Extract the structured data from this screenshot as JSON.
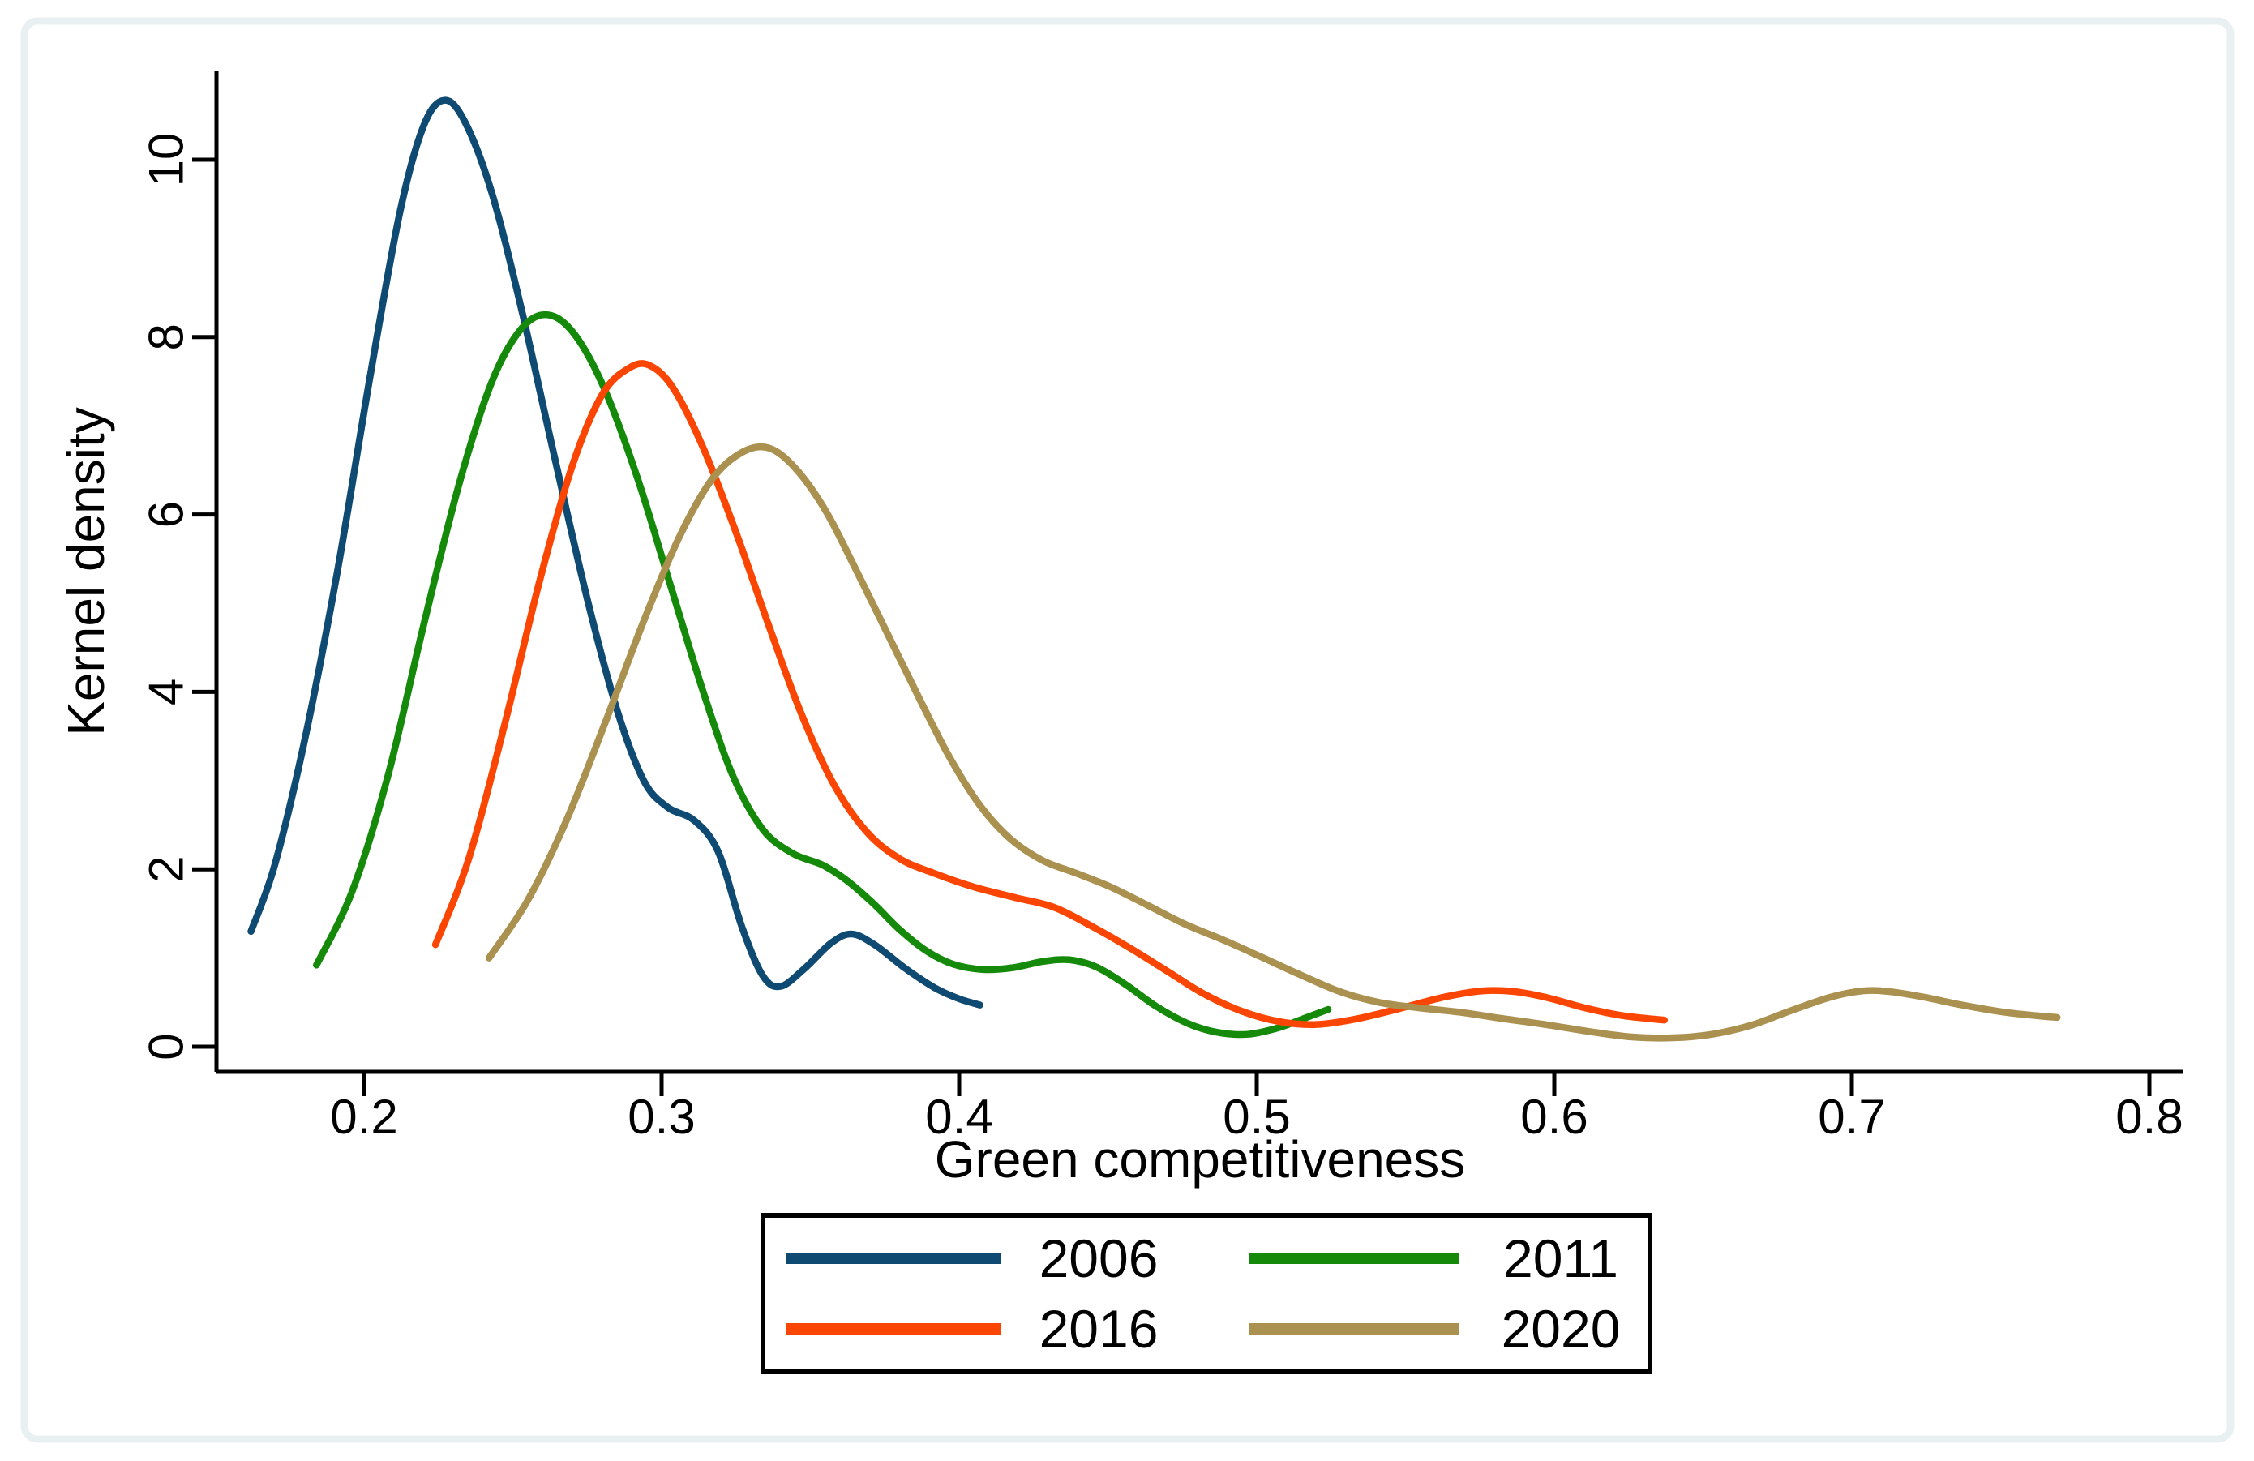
{
  "figure": {
    "background": "#ffffff",
    "frame_color": "#e8f0f1",
    "axis_color": "#000000"
  },
  "chart_data": {
    "type": "line",
    "subtype": "kernel-density",
    "title": "",
    "xlabel": "Green competitiveness",
    "ylabel": "Kernel density",
    "xlim": [
      0.15,
      0.811
    ],
    "ylim": [
      0,
      11
    ],
    "grid": false,
    "legend_position": "bottom-center",
    "xticks": [
      0.2,
      0.3,
      0.4,
      0.5,
      0.6,
      0.7,
      0.8
    ],
    "xtick_labels": [
      "0.2",
      "0.3",
      "0.4",
      "0.5",
      "0.6",
      "0.7",
      "0.8"
    ],
    "yticks": [
      0,
      2,
      4,
      6,
      8,
      10
    ],
    "ytick_labels": [
      "0",
      "2",
      "4",
      "6",
      "8",
      "10"
    ],
    "series": [
      {
        "name": "2006",
        "color": "#0e4a72",
        "peak": {
          "x": 0.227,
          "y": 10.67
        },
        "points": [
          [
            0.162,
            1.3
          ],
          [
            0.17,
            2.05
          ],
          [
            0.18,
            3.45
          ],
          [
            0.191,
            5.35
          ],
          [
            0.202,
            7.55
          ],
          [
            0.212,
            9.4
          ],
          [
            0.22,
            10.38
          ],
          [
            0.227,
            10.67
          ],
          [
            0.234,
            10.42
          ],
          [
            0.243,
            9.62
          ],
          [
            0.253,
            8.3
          ],
          [
            0.264,
            6.65
          ],
          [
            0.275,
            5.05
          ],
          [
            0.285,
            3.8
          ],
          [
            0.294,
            3.0
          ],
          [
            0.302,
            2.7
          ],
          [
            0.311,
            2.55
          ],
          [
            0.319,
            2.2
          ],
          [
            0.327,
            1.35
          ],
          [
            0.334,
            0.8
          ],
          [
            0.34,
            0.68
          ],
          [
            0.348,
            0.88
          ],
          [
            0.357,
            1.17
          ],
          [
            0.364,
            1.27
          ],
          [
            0.372,
            1.14
          ],
          [
            0.382,
            0.88
          ],
          [
            0.392,
            0.66
          ],
          [
            0.4,
            0.54
          ],
          [
            0.407,
            0.47
          ]
        ]
      },
      {
        "name": "2011",
        "color": "#158a0a",
        "peak": {
          "x": 0.262,
          "y": 8.25
        },
        "points": [
          [
            0.184,
            0.92
          ],
          [
            0.196,
            1.75
          ],
          [
            0.208,
            3.05
          ],
          [
            0.22,
            4.75
          ],
          [
            0.232,
            6.35
          ],
          [
            0.243,
            7.5
          ],
          [
            0.253,
            8.1
          ],
          [
            0.262,
            8.25
          ],
          [
            0.271,
            8.02
          ],
          [
            0.281,
            7.4
          ],
          [
            0.292,
            6.4
          ],
          [
            0.303,
            5.2
          ],
          [
            0.314,
            4.0
          ],
          [
            0.324,
            3.05
          ],
          [
            0.334,
            2.45
          ],
          [
            0.344,
            2.18
          ],
          [
            0.354,
            2.05
          ],
          [
            0.362,
            1.88
          ],
          [
            0.371,
            1.62
          ],
          [
            0.38,
            1.32
          ],
          [
            0.389,
            1.08
          ],
          [
            0.398,
            0.93
          ],
          [
            0.408,
            0.87
          ],
          [
            0.418,
            0.89
          ],
          [
            0.428,
            0.96
          ],
          [
            0.437,
            0.98
          ],
          [
            0.446,
            0.9
          ],
          [
            0.456,
            0.7
          ],
          [
            0.466,
            0.46
          ],
          [
            0.477,
            0.26
          ],
          [
            0.487,
            0.16
          ],
          [
            0.497,
            0.14
          ],
          [
            0.507,
            0.21
          ],
          [
            0.516,
            0.32
          ],
          [
            0.524,
            0.42
          ]
        ]
      },
      {
        "name": "2016",
        "color": "#fb4502",
        "peak": {
          "x": 0.296,
          "y": 7.68
        },
        "points": [
          [
            0.224,
            1.15
          ],
          [
            0.235,
            2.1
          ],
          [
            0.247,
            3.6
          ],
          [
            0.259,
            5.25
          ],
          [
            0.27,
            6.55
          ],
          [
            0.28,
            7.35
          ],
          [
            0.289,
            7.65
          ],
          [
            0.296,
            7.68
          ],
          [
            0.304,
            7.42
          ],
          [
            0.314,
            6.75
          ],
          [
            0.325,
            5.8
          ],
          [
            0.336,
            4.75
          ],
          [
            0.347,
            3.75
          ],
          [
            0.358,
            2.95
          ],
          [
            0.369,
            2.42
          ],
          [
            0.38,
            2.12
          ],
          [
            0.392,
            1.95
          ],
          [
            0.405,
            1.8
          ],
          [
            0.419,
            1.68
          ],
          [
            0.432,
            1.57
          ],
          [
            0.445,
            1.35
          ],
          [
            0.458,
            1.1
          ],
          [
            0.47,
            0.85
          ],
          [
            0.482,
            0.6
          ],
          [
            0.495,
            0.4
          ],
          [
            0.508,
            0.28
          ],
          [
            0.52,
            0.25
          ],
          [
            0.533,
            0.31
          ],
          [
            0.548,
            0.43
          ],
          [
            0.563,
            0.56
          ],
          [
            0.576,
            0.63
          ],
          [
            0.587,
            0.62
          ],
          [
            0.598,
            0.55
          ],
          [
            0.61,
            0.44
          ],
          [
            0.623,
            0.35
          ],
          [
            0.637,
            0.3
          ]
        ]
      },
      {
        "name": "2020",
        "color": "#aa9150",
        "peak": {
          "x": 0.336,
          "y": 6.75
        },
        "points": [
          [
            0.242,
            1.0
          ],
          [
            0.255,
            1.65
          ],
          [
            0.268,
            2.55
          ],
          [
            0.281,
            3.65
          ],
          [
            0.294,
            4.8
          ],
          [
            0.306,
            5.75
          ],
          [
            0.317,
            6.4
          ],
          [
            0.327,
            6.7
          ],
          [
            0.336,
            6.75
          ],
          [
            0.345,
            6.52
          ],
          [
            0.355,
            6.05
          ],
          [
            0.365,
            5.4
          ],
          [
            0.376,
            4.65
          ],
          [
            0.387,
            3.9
          ],
          [
            0.397,
            3.25
          ],
          [
            0.407,
            2.72
          ],
          [
            0.417,
            2.35
          ],
          [
            0.428,
            2.1
          ],
          [
            0.439,
            1.96
          ],
          [
            0.451,
            1.8
          ],
          [
            0.463,
            1.6
          ],
          [
            0.476,
            1.38
          ],
          [
            0.489,
            1.2
          ],
          [
            0.501,
            1.02
          ],
          [
            0.514,
            0.82
          ],
          [
            0.528,
            0.62
          ],
          [
            0.541,
            0.5
          ],
          [
            0.554,
            0.44
          ],
          [
            0.568,
            0.39
          ],
          [
            0.582,
            0.32
          ],
          [
            0.597,
            0.25
          ],
          [
            0.612,
            0.17
          ],
          [
            0.626,
            0.11
          ],
          [
            0.64,
            0.1
          ],
          [
            0.653,
            0.14
          ],
          [
            0.666,
            0.24
          ],
          [
            0.679,
            0.4
          ],
          [
            0.693,
            0.56
          ],
          [
            0.704,
            0.63
          ],
          [
            0.713,
            0.62
          ],
          [
            0.724,
            0.56
          ],
          [
            0.737,
            0.47
          ],
          [
            0.751,
            0.39
          ],
          [
            0.762,
            0.35
          ],
          [
            0.769,
            0.33
          ]
        ]
      }
    ]
  },
  "legend": {
    "entries": [
      "2006",
      "2011",
      "2016",
      "2020"
    ]
  }
}
